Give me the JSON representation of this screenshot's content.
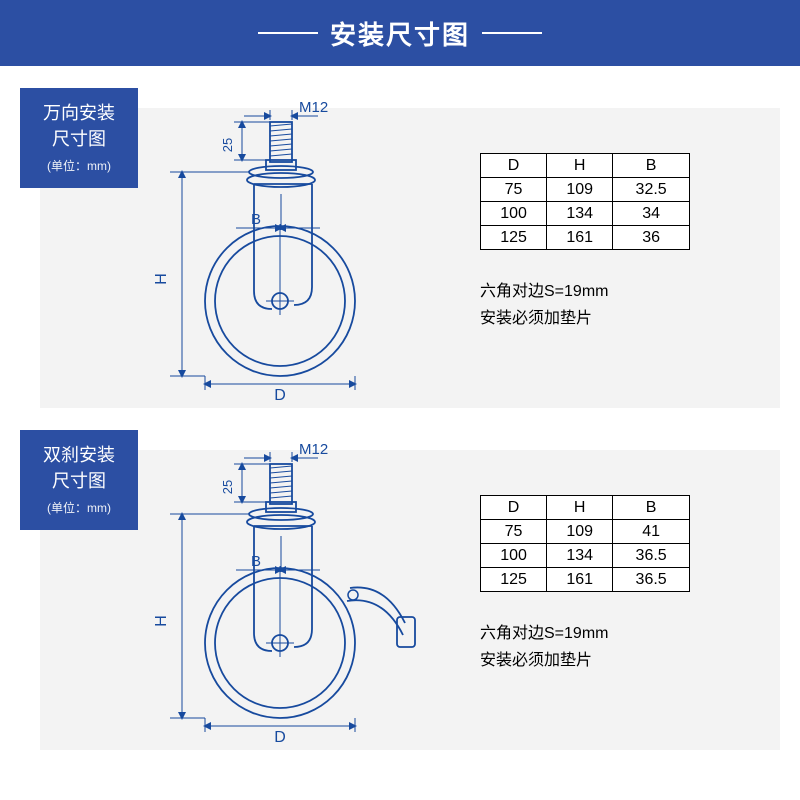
{
  "header": {
    "title": "安装尺寸图",
    "background_color": "#2c4fa3",
    "text_color": "#ffffff"
  },
  "badge": {
    "background_color": "#2c4fa3",
    "text_color": "#ffffff",
    "unit_label": "(单位：mm)"
  },
  "diagram_colors": {
    "stroke": "#174a9e",
    "background": "#f3f3f3"
  },
  "labels": {
    "M12": "M12",
    "H": "H",
    "D": "D",
    "B": "B",
    "25": "25"
  },
  "panels": [
    {
      "badge_line1": "万向安装",
      "badge_line2": "尺寸图",
      "has_brake": false,
      "table": {
        "headers": [
          "D",
          "H",
          "B"
        ],
        "rows": [
          [
            "75",
            "109",
            "32.5"
          ],
          [
            "100",
            "134",
            "34"
          ],
          [
            "125",
            "161",
            "36"
          ]
        ]
      },
      "notes": [
        "六角对边S=19mm",
        "安装必须加垫片"
      ]
    },
    {
      "badge_line1": "双刹安装",
      "badge_line2": "尺寸图",
      "has_brake": true,
      "table": {
        "headers": [
          "D",
          "H",
          "B"
        ],
        "rows": [
          [
            "75",
            "109",
            "41"
          ],
          [
            "100",
            "134",
            "36.5"
          ],
          [
            "125",
            "161",
            "36.5"
          ]
        ]
      },
      "notes": [
        "六角对边S=19mm",
        "安装必须加垫片"
      ]
    }
  ]
}
